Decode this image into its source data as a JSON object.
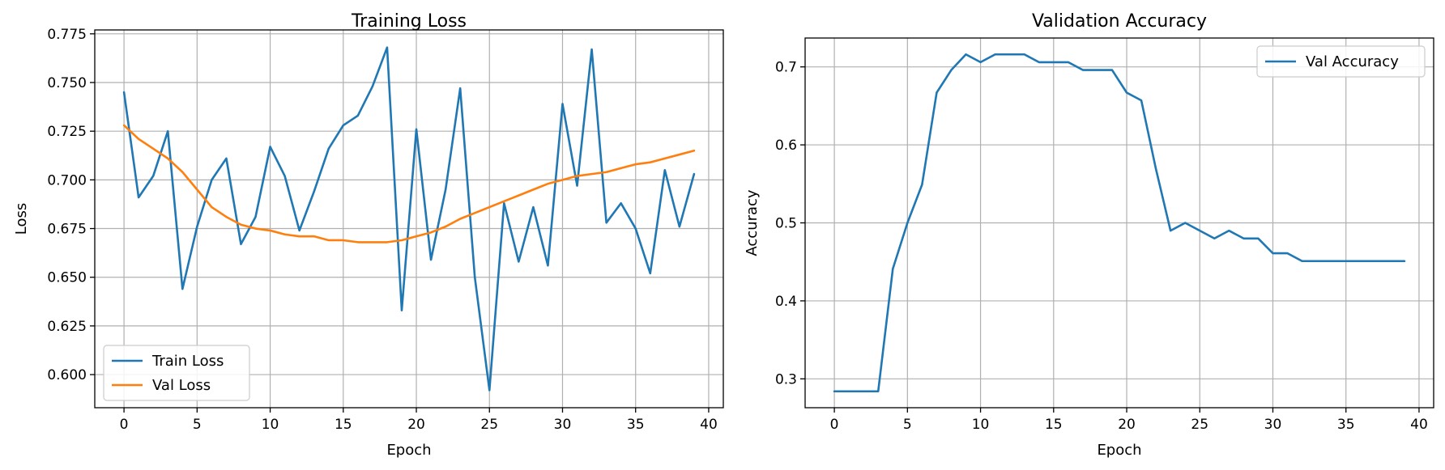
{
  "chart_data": [
    {
      "type": "line",
      "title": "Training Loss",
      "xlabel": "Epoch",
      "ylabel": "Loss",
      "xlim": [
        -2,
        41
      ],
      "ylim": [
        0.583,
        0.777
      ],
      "xticks": [
        0,
        5,
        10,
        15,
        20,
        25,
        30,
        35,
        40
      ],
      "yticks": [
        0.6,
        0.625,
        0.65,
        0.675,
        0.7,
        0.725,
        0.75,
        0.775
      ],
      "ytick_labels": [
        "0.600",
        "0.625",
        "0.650",
        "0.675",
        "0.700",
        "0.725",
        "0.750",
        "0.775"
      ],
      "grid": true,
      "legend_position": "lower-left",
      "x": [
        0,
        1,
        2,
        3,
        4,
        5,
        6,
        7,
        8,
        9,
        10,
        11,
        12,
        13,
        14,
        15,
        16,
        17,
        18,
        19,
        20,
        21,
        22,
        23,
        24,
        25,
        26,
        27,
        28,
        29,
        30,
        31,
        32,
        33,
        34,
        35,
        36,
        37,
        38,
        39
      ],
      "series": [
        {
          "name": "Train Loss",
          "color": "#1f77b4",
          "values": [
            0.745,
            0.691,
            0.702,
            0.725,
            0.644,
            0.676,
            0.7,
            0.711,
            0.667,
            0.681,
            0.717,
            0.702,
            0.674,
            0.694,
            0.716,
            0.728,
            0.733,
            0.748,
            0.768,
            0.633,
            0.726,
            0.659,
            0.695,
            0.747,
            0.65,
            0.592,
            0.688,
            0.658,
            0.686,
            0.656,
            0.739,
            0.697,
            0.767,
            0.678,
            0.688,
            0.675,
            0.652,
            0.705,
            0.676,
            0.703
          ]
        },
        {
          "name": "Val Loss",
          "color": "#ff7f0e",
          "values": [
            0.728,
            0.721,
            0.716,
            0.711,
            0.704,
            0.695,
            0.686,
            0.681,
            0.677,
            0.675,
            0.674,
            0.672,
            0.671,
            0.671,
            0.669,
            0.669,
            0.668,
            0.668,
            0.668,
            0.669,
            0.671,
            0.673,
            0.676,
            0.68,
            0.683,
            0.686,
            0.689,
            0.692,
            0.695,
            0.698,
            0.7,
            0.702,
            0.703,
            0.704,
            0.706,
            0.708,
            0.709,
            0.711,
            0.713,
            0.715
          ]
        }
      ]
    },
    {
      "type": "line",
      "title": "Validation Accuracy",
      "xlabel": "Epoch",
      "ylabel": "Accuracy",
      "xlim": [
        -2,
        41
      ],
      "ylim": [
        0.263,
        0.737
      ],
      "xticks": [
        0,
        5,
        10,
        15,
        20,
        25,
        30,
        35,
        40
      ],
      "yticks": [
        0.3,
        0.4,
        0.5,
        0.6,
        0.7
      ],
      "ytick_labels": [
        "0.3",
        "0.4",
        "0.5",
        "0.6",
        "0.7"
      ],
      "grid": true,
      "legend_position": "upper-right",
      "x": [
        0,
        1,
        2,
        3,
        4,
        5,
        6,
        7,
        8,
        9,
        10,
        11,
        12,
        13,
        14,
        15,
        16,
        17,
        18,
        19,
        20,
        21,
        22,
        23,
        24,
        25,
        26,
        27,
        28,
        29,
        30,
        31,
        32,
        33,
        34,
        35,
        36,
        37,
        38,
        39
      ],
      "series": [
        {
          "name": "Val Accuracy",
          "color": "#1f77b4",
          "values": [
            0.284,
            0.284,
            0.284,
            0.284,
            0.441,
            0.5,
            0.549,
            0.667,
            0.696,
            0.716,
            0.706,
            0.716,
            0.716,
            0.716,
            0.706,
            0.706,
            0.706,
            0.696,
            0.696,
            0.696,
            0.667,
            0.657,
            0.569,
            0.49,
            0.5,
            0.49,
            0.48,
            0.49,
            0.48,
            0.48,
            0.461,
            0.461,
            0.451,
            0.451,
            0.451,
            0.451,
            0.451,
            0.451,
            0.451,
            0.451
          ]
        }
      ]
    }
  ]
}
